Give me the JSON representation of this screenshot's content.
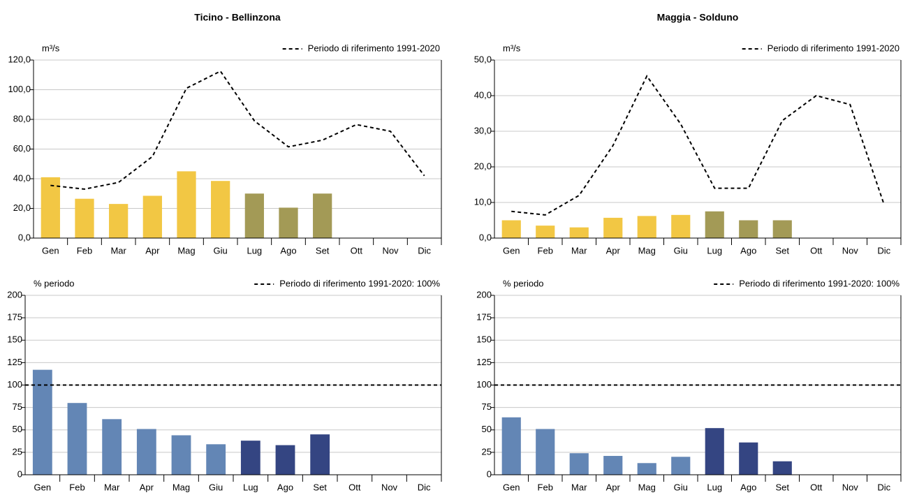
{
  "chart_data": [
    {
      "type": "bar",
      "title": "Ticino - Bellinzona",
      "y_unit": "m³/s",
      "categories": [
        "Gen",
        "Feb",
        "Mar",
        "Apr",
        "Mag",
        "Giu",
        "Lug",
        "Ago",
        "Set",
        "Ott",
        "Nov",
        "Dic"
      ],
      "values": [
        41,
        26.5,
        23,
        28.5,
        45,
        38.5,
        30,
        20.5,
        30,
        null,
        null,
        null
      ],
      "colors": [
        "#f2c744",
        "#f2c744",
        "#f2c744",
        "#f2c744",
        "#f2c744",
        "#f2c744",
        "#a39a56",
        "#a39a56",
        "#a39a56",
        null,
        null,
        null
      ],
      "series": [
        {
          "name": "Periodo di riferimento 1991-2020",
          "color": "#000000",
          "dashed": true,
          "values": [
            35.5,
            33,
            37.5,
            55,
            101,
            112.5,
            79,
            61.5,
            66,
            76.5,
            72,
            42
          ]
        }
      ],
      "ylim": [
        0,
        120
      ],
      "yticks": [
        {
          "value": 0,
          "label": "0,0"
        },
        {
          "value": 20,
          "label": "20,0"
        },
        {
          "value": 40,
          "label": "40,0"
        },
        {
          "value": 60,
          "label": "60,0"
        },
        {
          "value": 80,
          "label": "80,0"
        },
        {
          "value": 100,
          "label": "100,0"
        },
        {
          "value": 120,
          "label": "120,0"
        }
      ],
      "grid": true
    },
    {
      "type": "bar",
      "title": "Maggia - Solduno",
      "y_unit": "m³/s",
      "categories": [
        "Gen",
        "Feb",
        "Mar",
        "Apr",
        "Mag",
        "Giu",
        "Lug",
        "Ago",
        "Set",
        "Ott",
        "Nov",
        "Dic"
      ],
      "values": [
        5,
        3.5,
        3,
        5.7,
        6.2,
        6.5,
        7.5,
        5,
        5,
        null,
        null,
        null
      ],
      "colors": [
        "#f2c744",
        "#f2c744",
        "#f2c744",
        "#f2c744",
        "#f2c744",
        "#f2c744",
        "#a39a56",
        "#a39a56",
        "#a39a56",
        null,
        null,
        null
      ],
      "series": [
        {
          "name": "Periodo di riferimento 1991-2020",
          "color": "#000000",
          "dashed": true,
          "values": [
            7.5,
            6.5,
            12,
            26,
            45.5,
            32,
            14,
            14,
            33,
            40,
            37.5,
            9.5
          ]
        }
      ],
      "ylim": [
        0,
        50
      ],
      "yticks": [
        {
          "value": 0,
          "label": "0,0"
        },
        {
          "value": 10,
          "label": "10,0"
        },
        {
          "value": 20,
          "label": "20,0"
        },
        {
          "value": 30,
          "label": "30,0"
        },
        {
          "value": 40,
          "label": "40,0"
        },
        {
          "value": 50,
          "label": "50,0"
        }
      ],
      "grid": true
    },
    {
      "type": "bar",
      "y_unit": "% periodo",
      "categories": [
        "Gen",
        "Feb",
        "Mar",
        "Apr",
        "Mag",
        "Giu",
        "Lug",
        "Ago",
        "Set",
        "Ott",
        "Nov",
        "Dic"
      ],
      "values": [
        117,
        80,
        62,
        51,
        44,
        34,
        38,
        33,
        45,
        null,
        null,
        null
      ],
      "colors": [
        "#6386b5",
        "#6386b5",
        "#6386b5",
        "#6386b5",
        "#6386b5",
        "#6386b5",
        "#344582",
        "#344582",
        "#344582",
        null,
        null,
        null
      ],
      "reference_line": {
        "name": "Periodo di riferimento 1991-2020: 100%",
        "value": 100,
        "color": "#000000",
        "dashed": true
      },
      "ylim": [
        0,
        200
      ],
      "yticks": [
        0,
        25,
        50,
        75,
        100,
        125,
        150,
        175,
        200
      ],
      "grid": true
    },
    {
      "type": "bar",
      "y_unit": "% periodo",
      "categories": [
        "Gen",
        "Feb",
        "Mar",
        "Apr",
        "Mag",
        "Giu",
        "Lug",
        "Ago",
        "Set",
        "Ott",
        "Nov",
        "Dic"
      ],
      "values": [
        64,
        51,
        24,
        21,
        13,
        20,
        52,
        36,
        15,
        null,
        null,
        null
      ],
      "colors": [
        "#6386b5",
        "#6386b5",
        "#6386b5",
        "#6386b5",
        "#6386b5",
        "#6386b5",
        "#344582",
        "#344582",
        "#344582",
        null,
        null,
        null
      ],
      "reference_line": {
        "name": "Periodo di riferimento 1991-2020: 100%",
        "value": 100,
        "color": "#000000",
        "dashed": true
      },
      "ylim": [
        0,
        200
      ],
      "yticks": [
        0,
        25,
        50,
        75,
        100,
        125,
        150,
        175,
        200
      ],
      "grid": true
    }
  ]
}
